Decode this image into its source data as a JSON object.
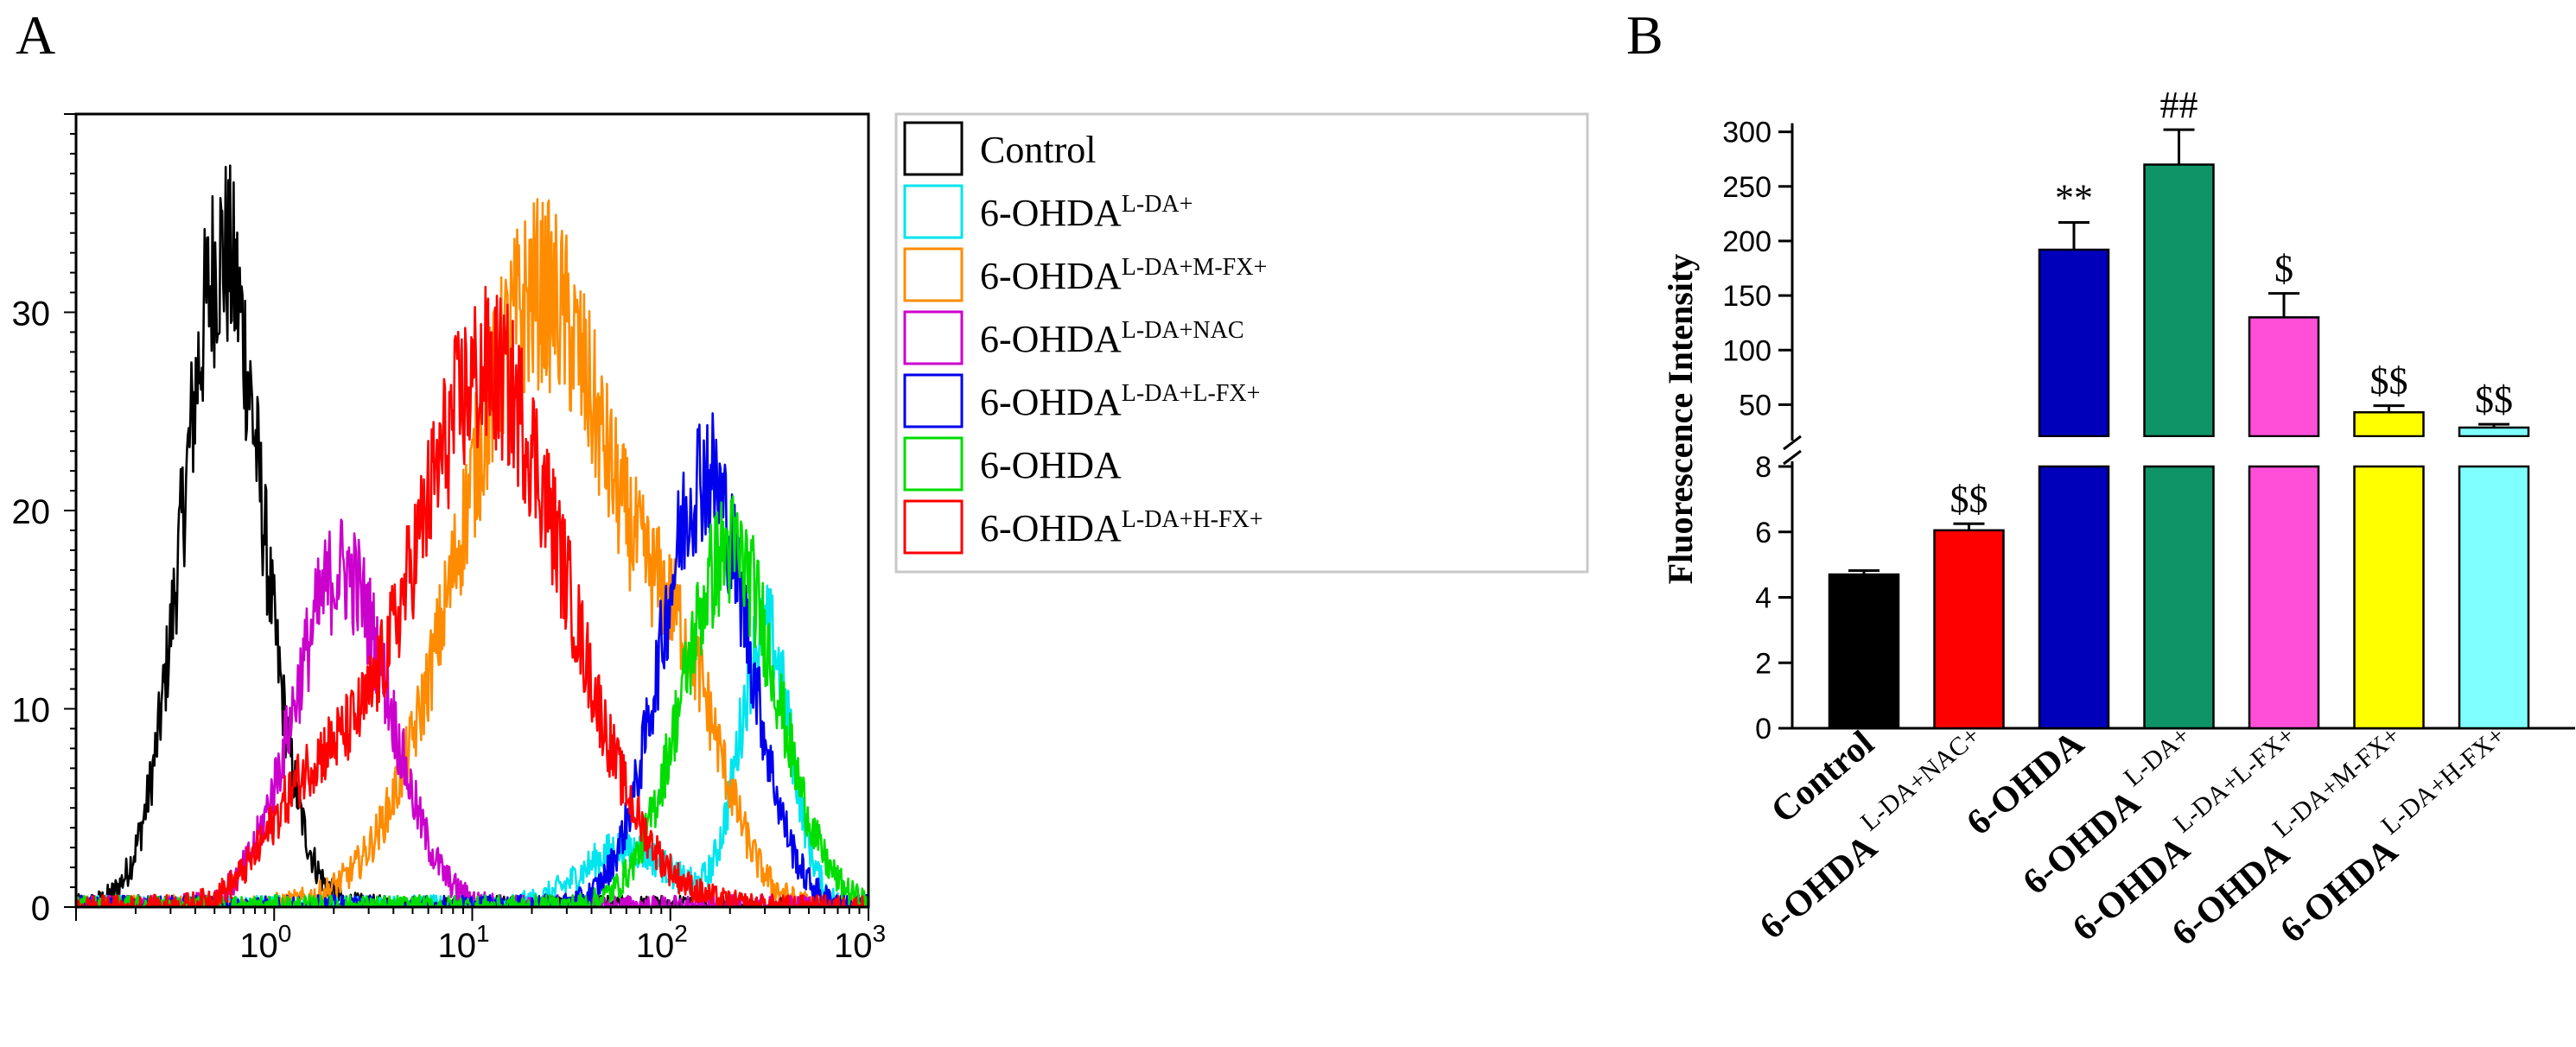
{
  "panels": {
    "a": {
      "label": "A"
    },
    "b": {
      "label": "B"
    }
  },
  "chart_data": [
    {
      "type": "line",
      "title": "",
      "xlabel": "",
      "ylabel": "",
      "xscale": "log",
      "xlim": [
        0.1,
        1000
      ],
      "ylim": [
        0,
        40
      ],
      "x_ticks": [
        {
          "base": "10",
          "exp": "0",
          "value": 1
        },
        {
          "base": "10",
          "exp": "1",
          "value": 10
        },
        {
          "base": "10",
          "exp": "2",
          "value": 100
        },
        {
          "base": "10",
          "exp": "3",
          "value": 1000
        }
      ],
      "y_ticks": [
        0,
        10,
        20,
        30
      ],
      "legend_position": "right, outside plot",
      "series": [
        {
          "name": "Control",
          "base": "Control",
          "sup": "",
          "color": "#000000",
          "peaks": [
            {
              "x": 0.55,
              "height": 33,
              "width": 0.2
            }
          ]
        },
        {
          "name": "6-OHDA L-DA+",
          "base": "6-OHDA",
          "sup": "L-DA+",
          "color": "#00e5ee",
          "peaks": [
            {
              "x": 300,
              "height": 14,
              "width": 0.13
            },
            {
              "x": 60,
              "height": 3,
              "width": 0.22
            }
          ]
        },
        {
          "name": "6-OHDA L-DA+M-FX+",
          "base": "6-OHDA",
          "sup": "L-DA+M-FX+",
          "color": "#ff8c00",
          "peaks": [
            {
              "x": 22,
              "height": 31,
              "width": 0.4
            },
            {
              "x": 120,
              "height": 8,
              "width": 0.2
            }
          ]
        },
        {
          "name": "6-OHDA L-DA+NAC",
          "base": "6-OHDA",
          "sup": "L-DA+NAC",
          "color": "#cc00cc",
          "peaks": [
            {
              "x": 2.2,
              "height": 17,
              "width": 0.24
            }
          ]
        },
        {
          "name": "6-OHDA L-DA+L-FX+",
          "base": "6-OHDA",
          "sup": "L-DA+L-FX+",
          "color": "#0000ee",
          "peaks": [
            {
              "x": 150,
              "height": 22,
              "width": 0.22
            }
          ]
        },
        {
          "name": "6-OHDA",
          "base": "6-OHDA",
          "sup": "",
          "color": "#00dd00",
          "peaks": [
            {
              "x": 200,
              "height": 18,
              "width": 0.24
            }
          ]
        },
        {
          "name": "6-OHDA L-DA+H-FX+",
          "base": "6-OHDA",
          "sup": "L-DA+H-FX+",
          "color": "#ff0000",
          "peaks": [
            {
              "x": 12,
              "height": 27,
              "width": 0.4
            },
            {
              "x": 1.5,
              "height": 5,
              "width": 0.22
            }
          ]
        }
      ]
    },
    {
      "type": "bar",
      "title": "",
      "xlabel": "",
      "ylabel": "Fluorescence Intensity",
      "broken_axis": true,
      "lower_range": [
        0,
        8
      ],
      "upper_range": [
        25,
        310
      ],
      "lower_ticks": [
        0,
        2,
        4,
        6,
        8
      ],
      "upper_ticks": [
        50,
        100,
        150,
        200,
        250,
        300
      ],
      "bars": [
        {
          "base": "Control",
          "sup": "",
          "value": 4.7,
          "error": 0.12,
          "color": "#000000",
          "annotation": ""
        },
        {
          "base": "6-OHDA",
          "sup": "L-DA+NAC+",
          "value": 6.05,
          "error": 0.2,
          "color": "#ff0000",
          "annotation": "$$"
        },
        {
          "base": "6-OHDA",
          "sup": "",
          "value": 192,
          "error": 25,
          "color": "#0000bb",
          "annotation": "**"
        },
        {
          "base": "6-OHDA",
          "sup": "L-DA+",
          "value": 270,
          "error": 32,
          "color": "#0e9467",
          "annotation": "##"
        },
        {
          "base": "6-OHDA",
          "sup": "L-DA+L-FX+",
          "value": 130,
          "error": 22,
          "color": "#ff4fd8",
          "annotation": "$"
        },
        {
          "base": "6-OHDA",
          "sup": "L-DA+M-FX+",
          "value": 43,
          "error": 6,
          "color": "#ffff00",
          "annotation": "$$"
        },
        {
          "base": "6-OHDA",
          "sup": "L-DA+H-FX+",
          "value": 29,
          "error": 3,
          "color": "#7fffff",
          "annotation": "$$"
        }
      ]
    }
  ]
}
